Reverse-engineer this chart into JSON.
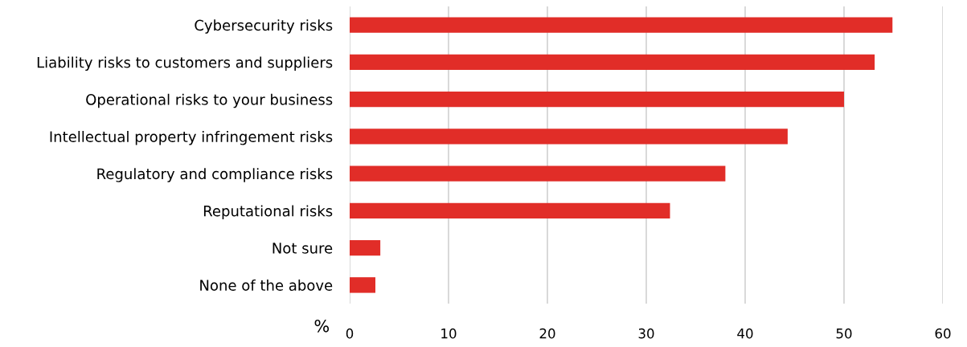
{
  "chart_data": {
    "type": "bar",
    "orientation": "horizontal",
    "xlabel": "%",
    "categories": [
      "Cybersecurity risks",
      "Liability risks to customers and suppliers",
      "Operational risks to your business",
      "Intellectual property infringement risks",
      "Regulatory and compliance risks",
      "Reputational risks",
      "Not sure",
      "None of the above"
    ],
    "values": [
      54.9,
      53.1,
      50,
      44.3,
      38,
      32.4,
      3.1,
      2.6
    ],
    "color": "#e12d28",
    "xlim": [
      0,
      60
    ],
    "xticks": [
      0,
      10,
      20,
      30,
      40,
      50,
      60
    ],
    "grid": "x"
  }
}
